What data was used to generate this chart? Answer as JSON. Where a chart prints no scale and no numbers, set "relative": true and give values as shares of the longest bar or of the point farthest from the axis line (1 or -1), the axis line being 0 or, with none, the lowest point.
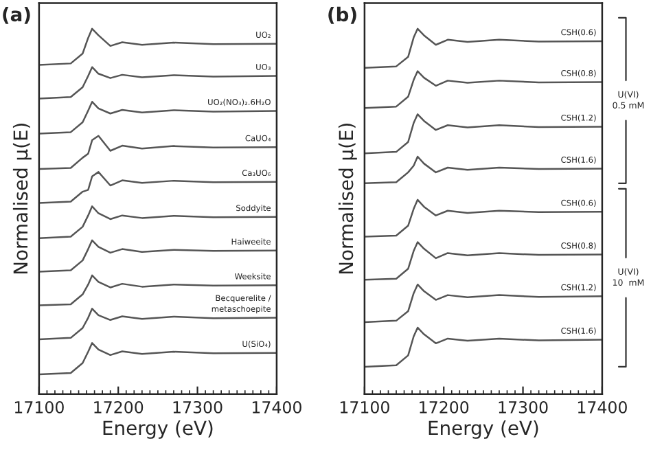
{
  "chart_data": [
    {
      "type": "line",
      "title": "(a)",
      "xlabel": "Energy (eV)",
      "ylabel": "Normalised μ(E)",
      "relative": true,
      "xlim": [
        17100,
        17400
      ],
      "xticks": [
        17100,
        17200,
        17300,
        17400
      ],
      "color": "#555555",
      "grid": false,
      "legend": false,
      "x": [
        17100,
        17140,
        17155,
        17162,
        17167,
        17175,
        17190,
        17205,
        17230,
        17270,
        17320,
        17400
      ],
      "series": [
        {
          "name": "UO₂",
          "values": [
            0.901,
            0.905,
            0.932,
            0.975,
            1.0,
            0.982,
            0.953,
            0.963,
            0.956,
            0.962,
            0.958,
            0.959
          ]
        },
        {
          "name": "UO₃",
          "values": [
            0.809,
            0.813,
            0.84,
            0.871,
            0.895,
            0.877,
            0.865,
            0.874,
            0.867,
            0.873,
            0.869,
            0.871
          ]
        },
        {
          "name": "UO₂(NO₃)₂.6H₂O",
          "values": [
            0.713,
            0.717,
            0.744,
            0.776,
            0.8,
            0.782,
            0.768,
            0.778,
            0.771,
            0.777,
            0.773,
            0.775
          ]
        },
        {
          "name": "CaUO₄",
          "values": [
            0.616,
            0.619,
            0.647,
            0.658,
            0.695,
            0.707,
            0.666,
            0.68,
            0.672,
            0.679,
            0.675,
            0.676
          ]
        },
        {
          "name": "Ca₃UO₆",
          "values": [
            0.523,
            0.527,
            0.554,
            0.559,
            0.596,
            0.608,
            0.571,
            0.585,
            0.578,
            0.584,
            0.58,
            0.581
          ]
        },
        {
          "name": "Soddyite",
          "values": [
            0.427,
            0.431,
            0.458,
            0.489,
            0.514,
            0.495,
            0.479,
            0.489,
            0.482,
            0.488,
            0.484,
            0.485
          ]
        },
        {
          "name": "Haiweeite",
          "values": [
            0.335,
            0.339,
            0.366,
            0.397,
            0.421,
            0.403,
            0.387,
            0.397,
            0.389,
            0.395,
            0.392,
            0.393
          ]
        },
        {
          "name": "Weeksite",
          "values": [
            0.243,
            0.246,
            0.273,
            0.3,
            0.325,
            0.307,
            0.292,
            0.302,
            0.294,
            0.3,
            0.297,
            0.298
          ]
        },
        {
          "name": "Becquerelite /\nmetaschoepite",
          "values": [
            0.15,
            0.154,
            0.181,
            0.209,
            0.234,
            0.216,
            0.203,
            0.213,
            0.206,
            0.212,
            0.208,
            0.209
          ]
        },
        {
          "name": "U(SiO₄)",
          "values": [
            0.054,
            0.058,
            0.085,
            0.116,
            0.14,
            0.122,
            0.107,
            0.117,
            0.11,
            0.116,
            0.112,
            0.113
          ]
        }
      ]
    },
    {
      "type": "line",
      "title": "(b)",
      "xlabel": "Energy (eV)",
      "ylabel": "Normalised μ(E)",
      "relative": true,
      "xlim": [
        17100,
        17400
      ],
      "xticks": [
        17100,
        17200,
        17300,
        17400
      ],
      "color": "#555555",
      "grid": false,
      "legend": false,
      "annotations": [
        "U(VI)\n0.5 mM",
        "U(VI)\n10  mM"
      ],
      "x": [
        17100,
        17140,
        17155,
        17162,
        17167,
        17175,
        17190,
        17205,
        17230,
        17270,
        17320,
        17400
      ],
      "series": [
        {
          "name": "CSH(0.6)",
          "values": [
            0.893,
            0.897,
            0.923,
            0.976,
            1.0,
            0.982,
            0.956,
            0.97,
            0.964,
            0.97,
            0.965,
            0.966
          ]
        },
        {
          "name": "CSH(0.8)",
          "values": [
            0.783,
            0.787,
            0.814,
            0.86,
            0.884,
            0.866,
            0.844,
            0.858,
            0.852,
            0.858,
            0.853,
            0.854
          ]
        },
        {
          "name": "CSH(1.2)",
          "values": [
            0.659,
            0.663,
            0.69,
            0.742,
            0.766,
            0.748,
            0.723,
            0.736,
            0.73,
            0.736,
            0.731,
            0.732
          ]
        },
        {
          "name": "CSH(1.6)",
          "values": [
            0.577,
            0.58,
            0.607,
            0.625,
            0.65,
            0.631,
            0.607,
            0.62,
            0.614,
            0.62,
            0.616,
            0.617
          ]
        },
        {
          "name": "CSH(0.6)",
          "values": [
            0.431,
            0.434,
            0.461,
            0.507,
            0.532,
            0.513,
            0.489,
            0.502,
            0.496,
            0.502,
            0.498,
            0.499
          ]
        },
        {
          "name": "CSH(0.8)",
          "values": [
            0.313,
            0.316,
            0.343,
            0.392,
            0.416,
            0.398,
            0.372,
            0.386,
            0.38,
            0.386,
            0.381,
            0.382
          ]
        },
        {
          "name": "CSH(1.2)",
          "values": [
            0.197,
            0.201,
            0.227,
            0.276,
            0.3,
            0.282,
            0.258,
            0.271,
            0.265,
            0.271,
            0.266,
            0.268
          ]
        },
        {
          "name": "CSH(1.6)",
          "values": [
            0.075,
            0.079,
            0.106,
            0.158,
            0.182,
            0.164,
            0.139,
            0.152,
            0.146,
            0.152,
            0.147,
            0.149
          ]
        }
      ]
    }
  ]
}
